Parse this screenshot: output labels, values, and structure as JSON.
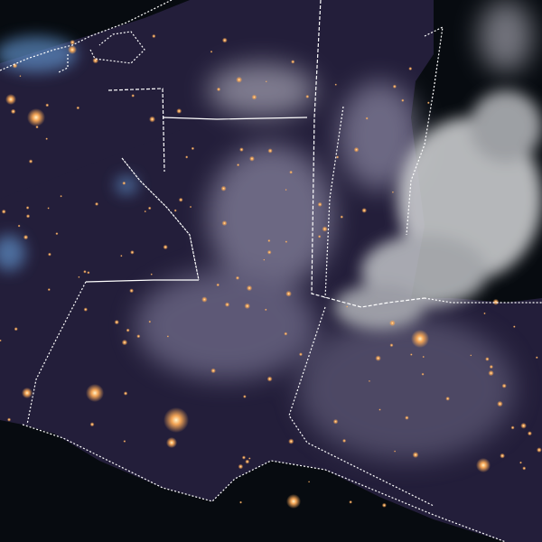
{
  "image": {
    "colors": {
      "land_night": "#231e3a",
      "ocean": "#070b10",
      "cloud": "#c9c8d4",
      "city_lights": "#f3a455",
      "borders": "#ffffff",
      "cold_cloud_tops": "#5f8fc8"
    }
  }
}
